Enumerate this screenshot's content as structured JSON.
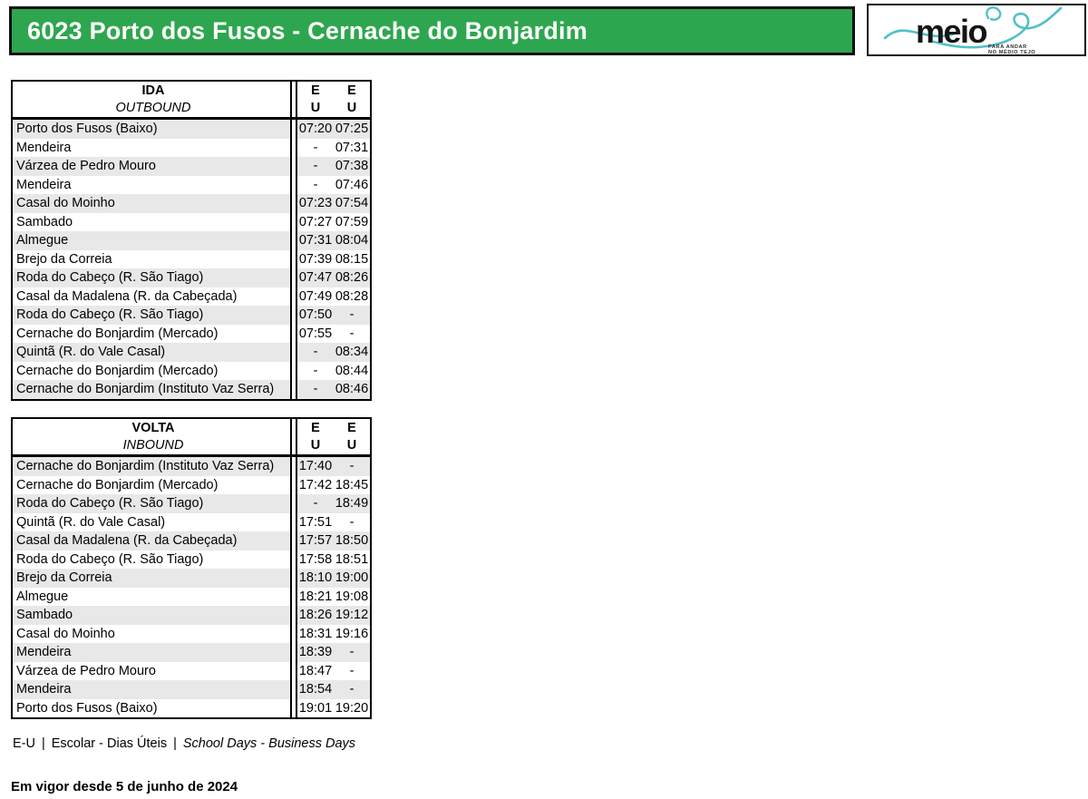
{
  "header": {
    "route_title": "6023 Porto dos Fusos - Cernache do Bonjardim",
    "logo": {
      "brand": "meio",
      "tagline_line1": "PARA ANDAR",
      "tagline_line2": "NO MÉDIO TEJO"
    }
  },
  "colors": {
    "header_green": "#2EA64F",
    "row_shade": "#E8E8E8",
    "logo_teal": "#4FC0C6",
    "border_black": "#101010"
  },
  "ida": {
    "title_pt": "IDA",
    "title_en": "OUTBOUND",
    "columns": [
      {
        "codes": [
          "E",
          "U"
        ]
      },
      {
        "codes": [
          "E",
          "U"
        ]
      }
    ],
    "rows": [
      {
        "stop": "Porto dos Fusos (Baixo)",
        "times": [
          "07:20",
          "07:25"
        ]
      },
      {
        "stop": "Mendeira",
        "times": [
          "-",
          "07:31"
        ]
      },
      {
        "stop": "Várzea de Pedro Mouro",
        "times": [
          "-",
          "07:38"
        ]
      },
      {
        "stop": "Mendeira",
        "times": [
          "-",
          "07:46"
        ]
      },
      {
        "stop": "Casal do Moinho",
        "times": [
          "07:23",
          "07:54"
        ]
      },
      {
        "stop": "Sambado",
        "times": [
          "07:27",
          "07:59"
        ]
      },
      {
        "stop": "Almegue",
        "times": [
          "07:31",
          "08:04"
        ]
      },
      {
        "stop": "Brejo da Correia",
        "times": [
          "07:39",
          "08:15"
        ]
      },
      {
        "stop": "Roda do Cabeço (R. São Tiago)",
        "times": [
          "07:47",
          "08:26"
        ]
      },
      {
        "stop": "Casal da Madalena (R. da Cabeçada)",
        "times": [
          "07:49",
          "08:28"
        ]
      },
      {
        "stop": "Roda do Cabeço (R. São Tiago)",
        "times": [
          "07:50",
          "-"
        ]
      },
      {
        "stop": "Cernache do Bonjardim (Mercado)",
        "times": [
          "07:55",
          "-"
        ]
      },
      {
        "stop": "Quintã (R. do Vale Casal)",
        "times": [
          "-",
          "08:34"
        ]
      },
      {
        "stop": "Cernache do Bonjardim (Mercado)",
        "times": [
          "-",
          "08:44"
        ]
      },
      {
        "stop": "Cernache do Bonjardim (Instituto Vaz Serra)",
        "times": [
          "-",
          "08:46"
        ]
      }
    ]
  },
  "volta": {
    "title_pt": "VOLTA",
    "title_en": "INBOUND",
    "columns": [
      {
        "codes": [
          "E",
          "U"
        ]
      },
      {
        "codes": [
          "E",
          "U"
        ]
      }
    ],
    "rows": [
      {
        "stop": "Cernache do Bonjardim (Instituto Vaz Serra)",
        "times": [
          "17:40",
          "-"
        ]
      },
      {
        "stop": "Cernache do Bonjardim (Mercado)",
        "times": [
          "17:42",
          "18:45"
        ]
      },
      {
        "stop": "Roda do Cabeço (R. São Tiago)",
        "times": [
          "-",
          "18:49"
        ]
      },
      {
        "stop": "Quintã (R. do Vale Casal)",
        "times": [
          "17:51",
          "-"
        ]
      },
      {
        "stop": "Casal da Madalena (R. da Cabeçada)",
        "times": [
          "17:57",
          "18:50"
        ]
      },
      {
        "stop": "Roda do Cabeço (R. São Tiago)",
        "times": [
          "17:58",
          "18:51"
        ]
      },
      {
        "stop": "Brejo da Correia",
        "times": [
          "18:10",
          "19:00"
        ]
      },
      {
        "stop": "Almegue",
        "times": [
          "18:21",
          "19:08"
        ]
      },
      {
        "stop": "Sambado",
        "times": [
          "18:26",
          "19:12"
        ]
      },
      {
        "stop": "Casal do Moinho",
        "times": [
          "18:31",
          "19:16"
        ]
      },
      {
        "stop": "Mendeira",
        "times": [
          "18:39",
          "-"
        ]
      },
      {
        "stop": "Várzea de Pedro Mouro",
        "times": [
          "18:47",
          "-"
        ]
      },
      {
        "stop": "Mendeira",
        "times": [
          "18:54",
          "-"
        ]
      },
      {
        "stop": "Porto dos Fusos (Baixo)",
        "times": [
          "19:01",
          "19:20"
        ]
      }
    ]
  },
  "footer": {
    "legend_code": "E-U",
    "legend_sep": "|",
    "legend_pt": "Escolar - Dias Úteis",
    "legend_en": "School Days - Business Days",
    "effective": "Em vigor desde 5 de junho de 2024"
  }
}
